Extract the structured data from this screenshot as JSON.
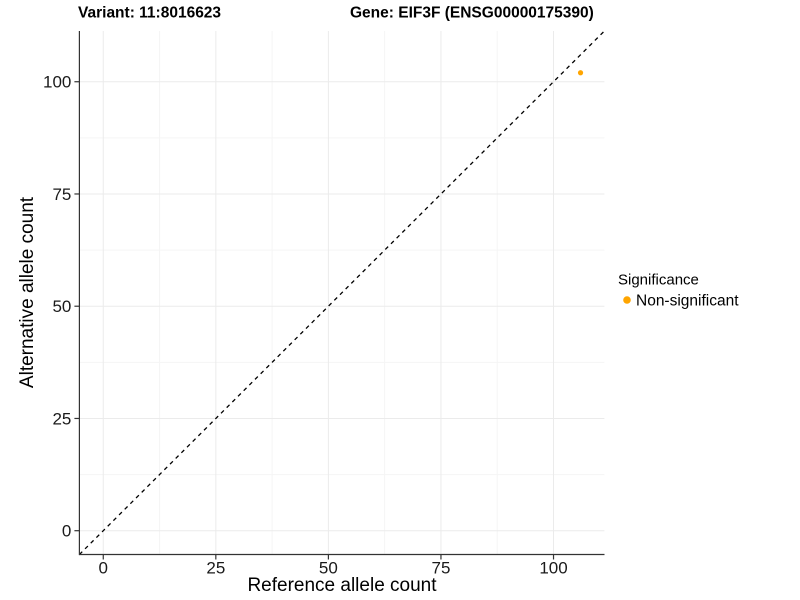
{
  "chart_data": {
    "type": "scatter",
    "title_left": "Variant: 11:8016623",
    "title_right": "Gene: EIF3F (ENSG00000175390)",
    "xlabel": "Reference allele count",
    "ylabel": "Alternative allele count",
    "xlim": [
      -5.3,
      111.3
    ],
    "ylim": [
      -5.3,
      111.3
    ],
    "x_ticks": [
      0,
      25,
      50,
      75,
      100
    ],
    "y_ticks": [
      0,
      25,
      50,
      75,
      100
    ],
    "x_minor_ticks": [
      12.5,
      37.5,
      62.5,
      87.5
    ],
    "y_minor_ticks": [
      12.5,
      37.5,
      62.5,
      87.5
    ],
    "grid": true,
    "points": [
      {
        "x": 106,
        "y": 102,
        "series": "Non-significant",
        "color": "#FFA500"
      }
    ],
    "reference_line": {
      "slope": 1,
      "intercept": 0,
      "style": "dashed",
      "color": "#000000"
    },
    "legend": {
      "title": "Significance",
      "position": "right",
      "items": [
        {
          "label": "Non-significant",
          "color": "#FFA500"
        }
      ]
    }
  },
  "colors": {
    "background": "#ffffff",
    "grid_major": "#ebebeb",
    "grid_minor": "#f5f5f5",
    "axis_line": "#333333",
    "tick_mark": "#333333",
    "point": "#FFA500"
  }
}
